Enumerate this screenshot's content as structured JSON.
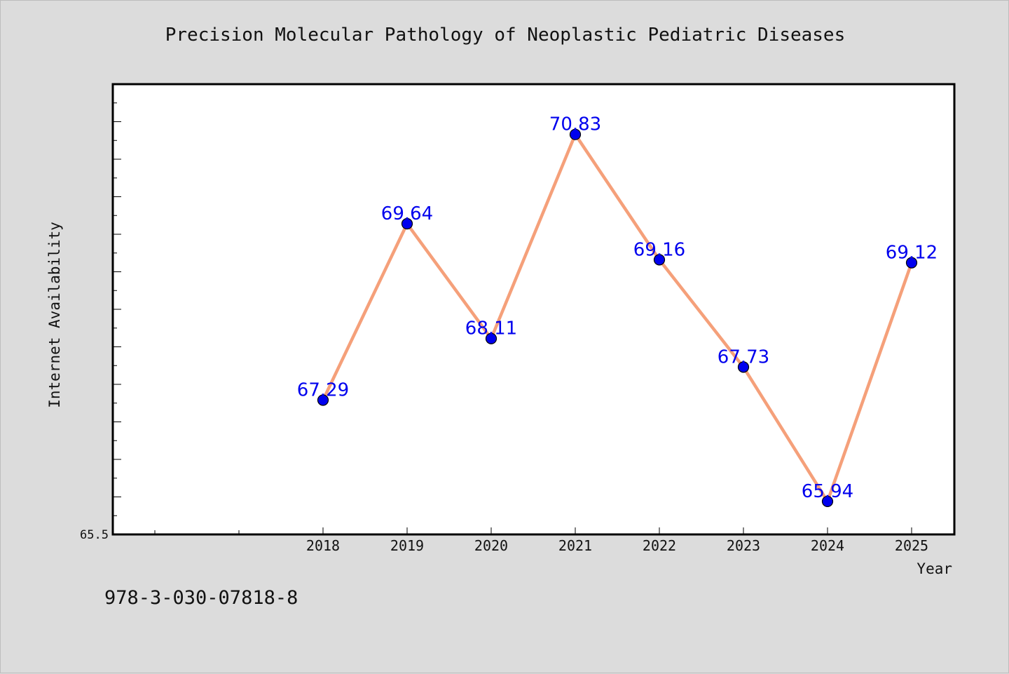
{
  "chart_data": {
    "type": "line",
    "title": "Precision Molecular Pathology of Neoplastic Pediatric Diseases",
    "xlabel": "Year",
    "ylabel": "Internet Availability",
    "categories": [
      "2018",
      "2019",
      "2020",
      "2021",
      "2022",
      "2023",
      "2024",
      "2025"
    ],
    "series": [
      {
        "values": [
          67.29,
          69.64,
          68.11,
          70.83,
          69.16,
          67.73,
          65.94,
          69.12
        ],
        "labels": [
          "67.29",
          "69.64",
          "68.11",
          "70.83",
          "69.16",
          "67.73",
          "65.94",
          "69.12"
        ],
        "line_color": "#f5a07a",
        "marker_color": "#0000ee"
      }
    ],
    "ylim": [
      65.5,
      71.5
    ],
    "y_tick_labels": [
      "65.5"
    ],
    "grid": false,
    "legend": "none"
  },
  "footer": {
    "isbn": "978-3-030-07818-8"
  }
}
